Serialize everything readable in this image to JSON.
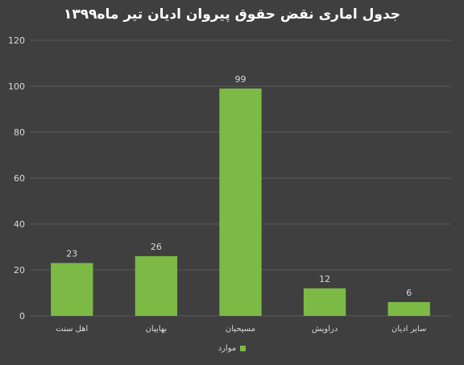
{
  "chart_data": {
    "type": "bar",
    "title": "جدول اماری نقض حقوق پیروان ادیان تیر ماه۱۳۹۹",
    "categories": [
      "اهل سنت",
      "بهاییان",
      "مسیحیان",
      "دراویش",
      "سایر ادیان"
    ],
    "series": [
      {
        "name": "موارد",
        "values": [
          23,
          26,
          99,
          12,
          6
        ]
      }
    ],
    "ylim": [
      0,
      120
    ],
    "yticks": [
      0,
      20,
      40,
      60,
      80,
      100,
      120
    ],
    "grid": true,
    "legend": "bottom",
    "colors": {
      "background": "#3f3f3f",
      "bar": "#7cba45",
      "grid": "#595959",
      "text": "#d9d9d9",
      "title": "#ffffff"
    }
  }
}
